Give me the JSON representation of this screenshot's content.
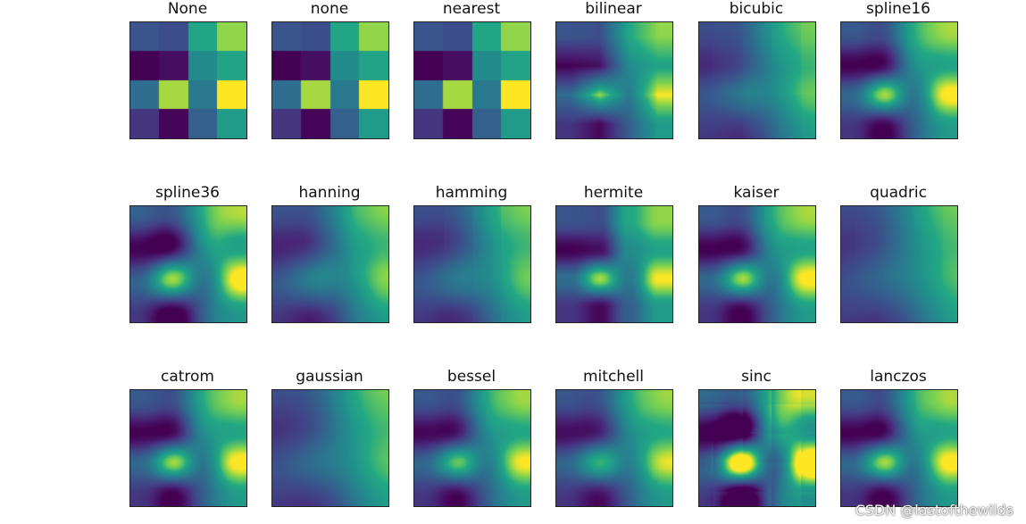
{
  "chart_data": {
    "type": "heatmap",
    "colormap": "viridis",
    "grid": {
      "rows": 4,
      "cols": 4
    },
    "values": [
      [
        0.33,
        0.3,
        0.74,
        0.9
      ],
      [
        0.0,
        0.05,
        0.6,
        0.72
      ],
      [
        0.45,
        0.92,
        0.5,
        1.0
      ],
      [
        0.2,
        0.02,
        0.38,
        0.68
      ]
    ],
    "panels": [
      {
        "title": "None"
      },
      {
        "title": "none"
      },
      {
        "title": "nearest"
      },
      {
        "title": "bilinear"
      },
      {
        "title": "bicubic"
      },
      {
        "title": "spline16"
      },
      {
        "title": "spline36"
      },
      {
        "title": "hanning"
      },
      {
        "title": "hamming"
      },
      {
        "title": "hermite"
      },
      {
        "title": "kaiser"
      },
      {
        "title": "quadric"
      },
      {
        "title": "catrom"
      },
      {
        "title": "gaussian"
      },
      {
        "title": "bessel"
      },
      {
        "title": "mitchell"
      },
      {
        "title": "sinc"
      },
      {
        "title": "lanczos"
      }
    ]
  },
  "watermark": "CSDN @lastofthewilds"
}
